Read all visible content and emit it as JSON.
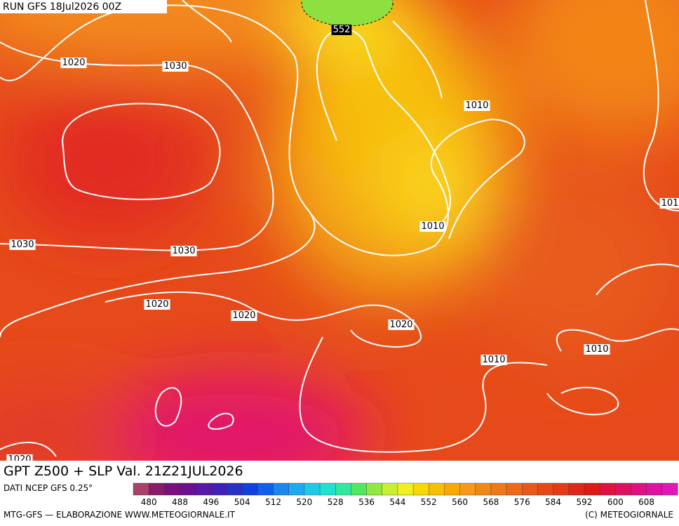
{
  "header": {
    "run": "RUN GFS 18Jul2026 00Z"
  },
  "contour_labels": [
    "552",
    "1020",
    "1030",
    "1010",
    "1010",
    "101",
    "1030",
    "1030",
    "1020",
    "1020",
    "1020",
    "1010",
    "1010",
    "1020"
  ],
  "title": "GPT Z500 + SLP Val. 21Z21JUL2026",
  "source": "DATI NCEP GFS 0.25°",
  "legend": {
    "colors": [
      "#a8406a",
      "#8a1a6a",
      "#7a1080",
      "#6a1090",
      "#5a18a8",
      "#4020b8",
      "#2830c8",
      "#1040e0",
      "#1060f0",
      "#1888f0",
      "#20a8f0",
      "#20c8e8",
      "#20e0d0",
      "#30e8a0",
      "#50e860",
      "#90e840",
      "#c8f030",
      "#f0f020",
      "#f8d800",
      "#f8c000",
      "#f8a800",
      "#f89818",
      "#f08818",
      "#f07818",
      "#f06818",
      "#e85818",
      "#e84818",
      "#e83818",
      "#e02818",
      "#e01818",
      "#e01040",
      "#e01060",
      "#e01080",
      "#e010a0",
      "#e018b8"
    ],
    "ticks": [
      480,
      488,
      496,
      504,
      512,
      520,
      528,
      536,
      544,
      552,
      560,
      568,
      576,
      584,
      592,
      600,
      608
    ]
  },
  "footer": {
    "left": "MTG-GFS — ELABORAZIONE WWW.METEOGIORNALE.IT",
    "right": "(C) METEOGIORNALE"
  }
}
